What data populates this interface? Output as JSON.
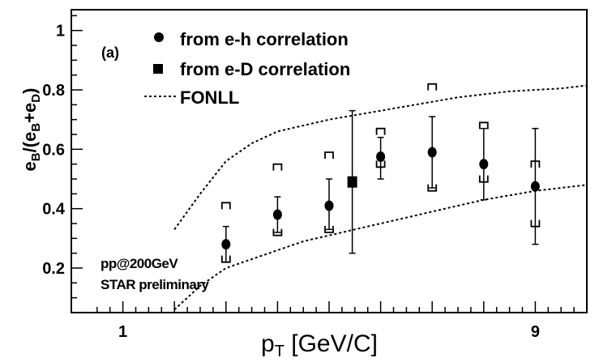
{
  "chart_data": {
    "type": "scatter",
    "panel_label": "(a)",
    "xlabel": "p",
    "xlabel_sub": "T",
    "xlabel_unit": " [GeV/C]",
    "ylabel_parts": [
      "e",
      "B",
      "/(e",
      "B",
      "+e",
      "D",
      ")"
    ],
    "xlim": [
      0,
      10
    ],
    "ylim": [
      0.05,
      1.07
    ],
    "xtick_labels": [
      {
        "x": 1,
        "label": "1"
      },
      {
        "x": 9,
        "label": "9"
      }
    ],
    "ytick_labels": [
      {
        "y": 0.2,
        "label": "0.2"
      },
      {
        "y": 0.4,
        "label": "0.4"
      },
      {
        "y": 0.6,
        "label": "0.6"
      },
      {
        "y": 0.8,
        "label": "0.8"
      },
      {
        "y": 1.0,
        "label": "1"
      }
    ],
    "legend": [
      {
        "marker": "circle",
        "label": "from  e-h correlation"
      },
      {
        "marker": "square",
        "label": "from  e-D correlation"
      },
      {
        "marker": "dashed-line",
        "label": "FONLL"
      }
    ],
    "annotations": [
      "pp@200GeV",
      "STAR preliminary"
    ],
    "series": [
      {
        "name": "from e-h correlation",
        "marker": "circle",
        "points": [
          {
            "x": 3.0,
            "y": 0.28,
            "ylow": 0.22,
            "yhigh": 0.34,
            "syslow": 0.22,
            "syshigh": 0.42
          },
          {
            "x": 4.0,
            "y": 0.38,
            "ylow": 0.32,
            "yhigh": 0.44,
            "syslow": 0.31,
            "syshigh": 0.55
          },
          {
            "x": 5.0,
            "y": 0.41,
            "ylow": 0.33,
            "yhigh": 0.5,
            "syslow": 0.32,
            "syshigh": 0.59
          },
          {
            "x": 6.0,
            "y": 0.575,
            "ylow": 0.5,
            "yhigh": 0.64,
            "syslow": 0.54,
            "syshigh": 0.67
          },
          {
            "x": 7.0,
            "y": 0.59,
            "ylow": 0.47,
            "yhigh": 0.71,
            "syslow": 0.46,
            "syshigh": 0.82
          },
          {
            "x": 8.0,
            "y": 0.55,
            "ylow": 0.43,
            "yhigh": 0.67,
            "syslow": 0.49,
            "syshigh": 0.69
          },
          {
            "x": 9.0,
            "y": 0.475,
            "ylow": 0.28,
            "yhigh": 0.67,
            "syslow": 0.34,
            "syshigh": 0.56
          }
        ]
      },
      {
        "name": "from e-D correlation",
        "marker": "square",
        "points": [
          {
            "x": 5.45,
            "y": 0.49,
            "ylow": 0.25,
            "yhigh": 0.73
          }
        ]
      },
      {
        "name": "FONLL upper",
        "style": "dashed",
        "x": [
          2.0,
          2.5,
          3.0,
          3.5,
          4.0,
          4.5,
          5.0,
          5.5,
          6.0,
          6.5,
          7.0,
          7.5,
          8.0,
          8.5,
          9.0,
          9.5,
          10.0
        ],
        "y": [
          0.33,
          0.45,
          0.56,
          0.62,
          0.66,
          0.68,
          0.7,
          0.715,
          0.73,
          0.745,
          0.76,
          0.775,
          0.785,
          0.795,
          0.8,
          0.805,
          0.815
        ]
      },
      {
        "name": "FONLL lower",
        "style": "dashed",
        "x": [
          2.0,
          2.5,
          3.0,
          3.5,
          4.0,
          4.5,
          5.0,
          5.5,
          6.0,
          6.5,
          7.0,
          7.5,
          8.0,
          8.5,
          9.0,
          9.5,
          10.0
        ],
        "y": [
          0.06,
          0.14,
          0.2,
          0.23,
          0.26,
          0.29,
          0.31,
          0.33,
          0.35,
          0.37,
          0.39,
          0.41,
          0.43,
          0.445,
          0.46,
          0.47,
          0.48
        ]
      }
    ]
  }
}
